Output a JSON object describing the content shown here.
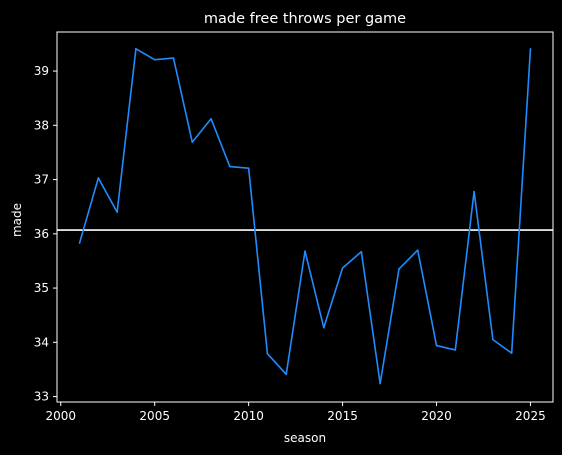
{
  "chart_data": {
    "type": "line",
    "title": "made free throws per game",
    "xlabel": "season",
    "ylabel": "made",
    "xlim": [
      1999.8,
      2026.2
    ],
    "ylim": [
      32.9,
      39.72
    ],
    "xticks": [
      2000,
      2005,
      2010,
      2015,
      2020,
      2025
    ],
    "yticks": [
      33,
      34,
      35,
      36,
      37,
      38,
      39
    ],
    "grid": false,
    "background": "#000000",
    "text_color": "#ffffff",
    "series": [
      {
        "color": "#1e8cff",
        "x": [
          2001,
          2002,
          2003,
          2004,
          2005,
          2006,
          2007,
          2008,
          2009,
          2010,
          2011,
          2012,
          2013,
          2014,
          2015,
          2016,
          2017,
          2018,
          2019,
          2020,
          2021,
          2022,
          2023,
          2024,
          2025
        ],
        "y": [
          35.83,
          37.03,
          36.4,
          39.41,
          39.21,
          39.24,
          37.69,
          38.12,
          37.24,
          37.21,
          33.79,
          33.41,
          35.68,
          34.27,
          35.37,
          35.67,
          33.24,
          35.35,
          35.7,
          33.94,
          33.86,
          36.78,
          34.05,
          33.8,
          39.41
        ]
      }
    ],
    "reference_line": {
      "orientation": "horizontal",
      "y": 36.07,
      "color": "#ffffff"
    }
  }
}
